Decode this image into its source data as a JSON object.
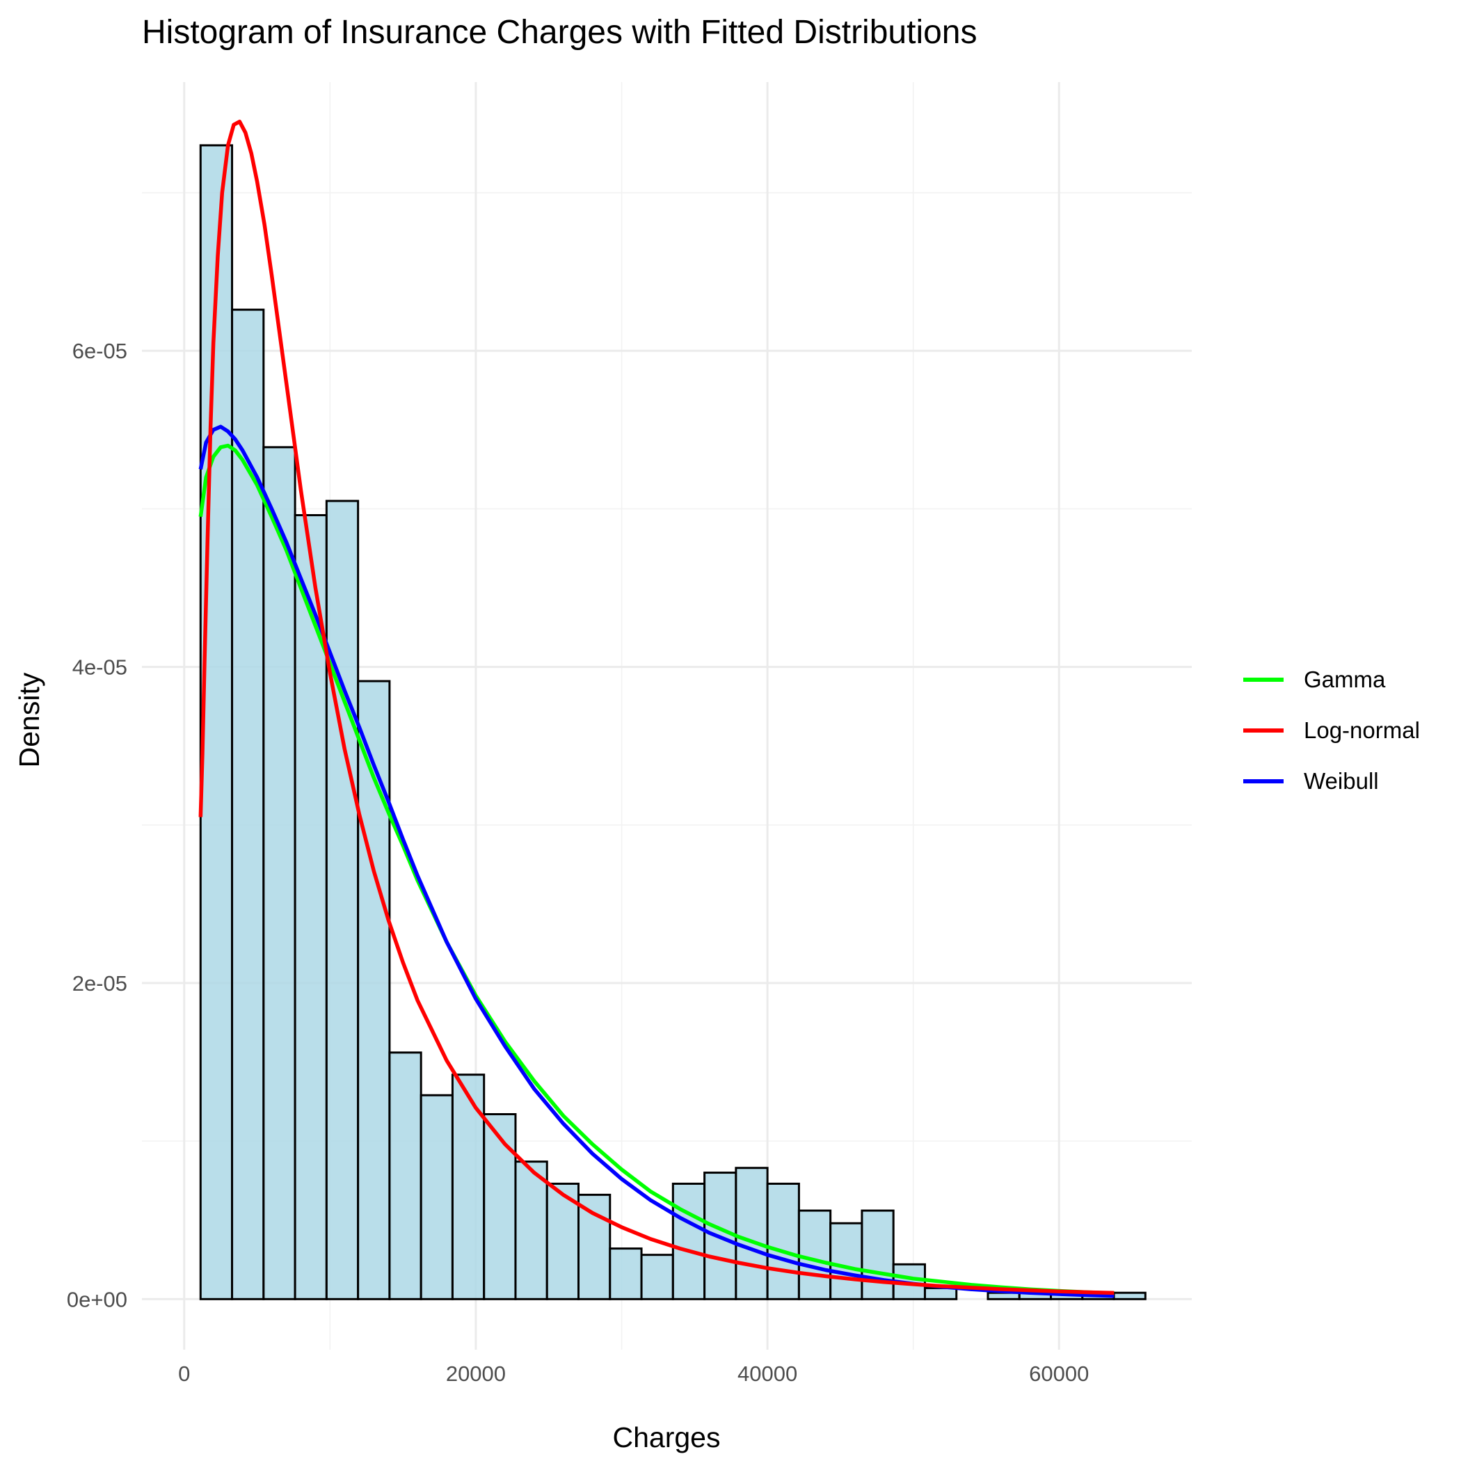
{
  "chart_data": {
    "type": "histogram",
    "title": "Histogram of Insurance Charges with Fitted Distributions",
    "xlabel": "Charges",
    "ylabel": "Density",
    "xlim": [
      -2900,
      69100
    ],
    "ylim": [
      -3.2e-06,
      7.7e-05
    ],
    "x_ticks": [
      0,
      20000,
      40000,
      60000
    ],
    "x_tick_labels": [
      "0",
      "20000",
      "40000",
      "60000"
    ],
    "y_ticks": [
      0,
      2e-05,
      4e-05,
      6e-05
    ],
    "y_tick_labels": [
      "0e+00",
      "2e-05",
      "4e-05",
      "6e-05"
    ],
    "grid": true,
    "legend_position": "right",
    "bins": {
      "start": 1121.87,
      "width": 2159.9,
      "densities": [
        7.3e-05,
        6.26e-05,
        5.39e-05,
        4.96e-05,
        5.05e-05,
        3.91e-05,
        1.56e-05,
        1.29e-05,
        1.42e-05,
        1.17e-05,
        8.7e-06,
        7.3e-06,
        6.6e-06,
        3.2e-06,
        2.8e-06,
        7.3e-06,
        8e-06,
        8.3e-06,
        7.3e-06,
        5.6e-06,
        4.8e-06,
        5.6e-06,
        2.2e-06,
        7e-07,
        0,
        4e-07,
        4e-07,
        4e-07,
        4e-07,
        4e-07
      ]
    },
    "series": [
      {
        "name": "Gamma",
        "color": "#00ff00",
        "x": [
          1122,
          1500,
          2000,
          2500,
          3000,
          3500,
          4000,
          5000,
          6000,
          7000,
          8000,
          9000,
          10000,
          11000,
          12000,
          13000,
          14000,
          15000,
          16000,
          18000,
          20000,
          22000,
          24000,
          26000,
          28000,
          30000,
          32000,
          34000,
          36000,
          38000,
          40000,
          42000,
          44000,
          46000,
          48000,
          50000,
          52000,
          54000,
          56000,
          58000,
          60000,
          62000,
          63770
        ],
        "y": [
          4.95e-05,
          5.2e-05,
          5.33e-05,
          5.39e-05,
          5.4e-05,
          5.37e-05,
          5.31e-05,
          5.15e-05,
          4.95e-05,
          4.74e-05,
          4.5e-05,
          4.26e-05,
          4.02e-05,
          3.78e-05,
          3.54e-05,
          3.3e-05,
          3.08e-05,
          2.87e-05,
          2.65e-05,
          2.26e-05,
          1.92e-05,
          1.63e-05,
          1.38e-05,
          1.16e-05,
          9.8e-06,
          8.2e-06,
          6.8e-06,
          5.7e-06,
          4.75e-06,
          3.95e-06,
          3.3e-06,
          2.75e-06,
          2.3e-06,
          1.9e-06,
          1.6e-06,
          1.3e-06,
          1.1e-06,
          9e-07,
          7.5e-07,
          6.2e-07,
          5.2e-07,
          4.3e-07,
          3.7e-07
        ]
      },
      {
        "name": "Log-normal",
        "color": "#ff0000",
        "x": [
          1122,
          1250,
          1400,
          1600,
          1800,
          2000,
          2300,
          2600,
          3000,
          3400,
          3800,
          4200,
          4600,
          5000,
          5500,
          6000,
          6500,
          7000,
          8000,
          9000,
          10000,
          11000,
          12000,
          13000,
          14000,
          15000,
          16000,
          18000,
          20000,
          22000,
          24000,
          26000,
          28000,
          30000,
          32000,
          34000,
          36000,
          38000,
          40000,
          42000,
          44000,
          46000,
          48000,
          50000,
          52000,
          54000,
          56000,
          58000,
          60000,
          62000,
          63770
        ],
        "y": [
          3.05e-05,
          3.45e-05,
          4.05e-05,
          4.8e-05,
          5.5e-05,
          6.05e-05,
          6.6e-05,
          7e-05,
          7.3e-05,
          7.43e-05,
          7.45e-05,
          7.38e-05,
          7.25e-05,
          7.07e-05,
          6.8e-05,
          6.48e-05,
          6.14e-05,
          5.8e-05,
          5.12e-05,
          4.5e-05,
          3.96e-05,
          3.48e-05,
          3.07e-05,
          2.71e-05,
          2.4e-05,
          2.13e-05,
          1.89e-05,
          1.51e-05,
          1.21e-05,
          9.8e-06,
          8e-06,
          6.6e-06,
          5.45e-06,
          4.55e-06,
          3.8e-06,
          3.2e-06,
          2.7e-06,
          2.3e-06,
          1.96e-06,
          1.68e-06,
          1.45e-06,
          1.25e-06,
          1.08e-06,
          9.4e-07,
          8.2e-07,
          7.2e-07,
          6.3e-07,
          5.6e-07,
          4.9e-07,
          4.3e-07,
          3.9e-07
        ]
      },
      {
        "name": "Weibull",
        "color": "#0000ff",
        "x": [
          1122,
          1500,
          2000,
          2500,
          3000,
          3500,
          4000,
          5000,
          6000,
          7000,
          8000,
          9000,
          10000,
          11000,
          12000,
          13000,
          14000,
          15000,
          16000,
          18000,
          20000,
          22000,
          24000,
          26000,
          28000,
          30000,
          32000,
          34000,
          36000,
          38000,
          40000,
          42000,
          44000,
          46000,
          48000,
          50000,
          52000,
          54000,
          56000,
          58000,
          60000,
          62000,
          63770
        ],
        "y": [
          5.25e-05,
          5.42e-05,
          5.5e-05,
          5.52e-05,
          5.49e-05,
          5.44e-05,
          5.37e-05,
          5.2e-05,
          5e-05,
          4.79e-05,
          4.56e-05,
          4.33e-05,
          4.09e-05,
          3.85e-05,
          3.62e-05,
          3.38e-05,
          3.15e-05,
          2.91e-05,
          2.68e-05,
          2.26e-05,
          1.9e-05,
          1.6e-05,
          1.33e-05,
          1.11e-05,
          9.2e-06,
          7.6e-06,
          6.25e-06,
          5.15e-06,
          4.2e-06,
          3.45e-06,
          2.8e-06,
          2.27e-06,
          1.84e-06,
          1.5e-06,
          1.2e-06,
          9.7e-07,
          7.8e-07,
          6.2e-07,
          5e-07,
          4e-07,
          3.2e-07,
          2.5e-07,
          2e-07
        ]
      }
    ]
  }
}
